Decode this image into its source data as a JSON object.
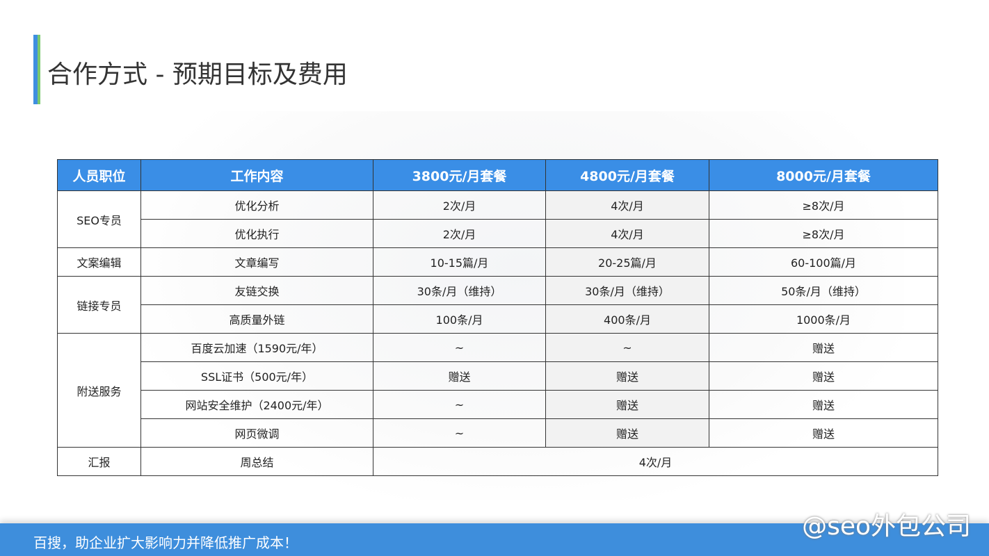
{
  "title": "合作方式 - 预期目标及费用",
  "table": {
    "headers": [
      "人员职位",
      "工作内容",
      "3800元/月套餐",
      "4800元/月套餐",
      "8000元/月套餐"
    ],
    "groups": [
      {
        "role": "SEO专员",
        "rows": [
          [
            "优化分析",
            "2次/月",
            "4次/月",
            "≥8次/月"
          ],
          [
            "优化执行",
            "2次/月",
            "4次/月",
            "≥8次/月"
          ]
        ]
      },
      {
        "role": "文案编辑",
        "rows": [
          [
            "文章编写",
            "10-15篇/月",
            "20-25篇/月",
            "60-100篇/月"
          ]
        ]
      },
      {
        "role": "链接专员",
        "rows": [
          [
            "友链交换",
            "30条/月（维持）",
            "30条/月（维持）",
            "50条/月（维持）"
          ],
          [
            "高质量外链",
            "100条/月",
            "400条/月",
            "1000条/月"
          ]
        ]
      },
      {
        "role": "附送服务",
        "rows": [
          [
            "百度云加速（1590元/年）",
            "~",
            "~",
            "赠送"
          ],
          [
            "SSL证书（500元/年）",
            "赠送",
            "赠送",
            "赠送"
          ],
          [
            "网站安全维护（2400元/年）",
            "~",
            "赠送",
            "赠送"
          ],
          [
            "网页微调",
            "~",
            "赠送",
            "赠送"
          ]
        ]
      },
      {
        "role": "汇报",
        "rows": [
          [
            "周总结",
            "4次/月"
          ]
        ]
      }
    ]
  },
  "footer": {
    "slogan": "百搜，助企业扩大影响力并降低推广成本！"
  },
  "watermark": "@seo外包公司"
}
